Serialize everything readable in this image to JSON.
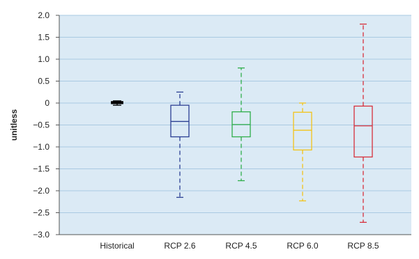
{
  "chart_data": {
    "type": "boxplot",
    "title": "",
    "xlabel": "",
    "ylabel": "unitless",
    "ylim": [
      -3.0,
      2.0
    ],
    "yticks": [
      "2.0",
      "1.5",
      "1.0",
      "0.5",
      "0",
      "−0.5",
      "−1.0",
      "−1.5",
      "−2.0",
      "−2.5",
      "−3.0"
    ],
    "grid": "horizontal",
    "background_color": "#dbeaf5",
    "grid_color": "#a9c9e2",
    "categories": [
      "Historical",
      "RCP 2.6",
      "RCP 4.5",
      "RCP 6.0",
      "RCP 8.5"
    ],
    "boxes": [
      {
        "category": "Historical",
        "color": "#000000",
        "whisker_low": -0.05,
        "q1": -0.01,
        "median": 0.01,
        "q3": 0.03,
        "whisker_high": 0.05
      },
      {
        "category": "RCP 2.6",
        "color": "#2a3f93",
        "whisker_low": -2.15,
        "q1": -0.77,
        "median": -0.42,
        "q3": -0.05,
        "whisker_high": 0.25
      },
      {
        "category": "RCP 4.5",
        "color": "#2fae4a",
        "whisker_low": -1.77,
        "q1": -0.77,
        "median": -0.49,
        "q3": -0.2,
        "whisker_high": 0.8
      },
      {
        "category": "RCP 6.0",
        "color": "#f2c318",
        "whisker_low": -2.23,
        "q1": -1.07,
        "median": -0.62,
        "q3": -0.21,
        "whisker_high": 0.0
      },
      {
        "category": "RCP 8.5",
        "color": "#d7303b",
        "whisker_low": -2.72,
        "q1": -1.23,
        "median": -0.52,
        "q3": -0.07,
        "whisker_high": 1.8
      }
    ]
  }
}
